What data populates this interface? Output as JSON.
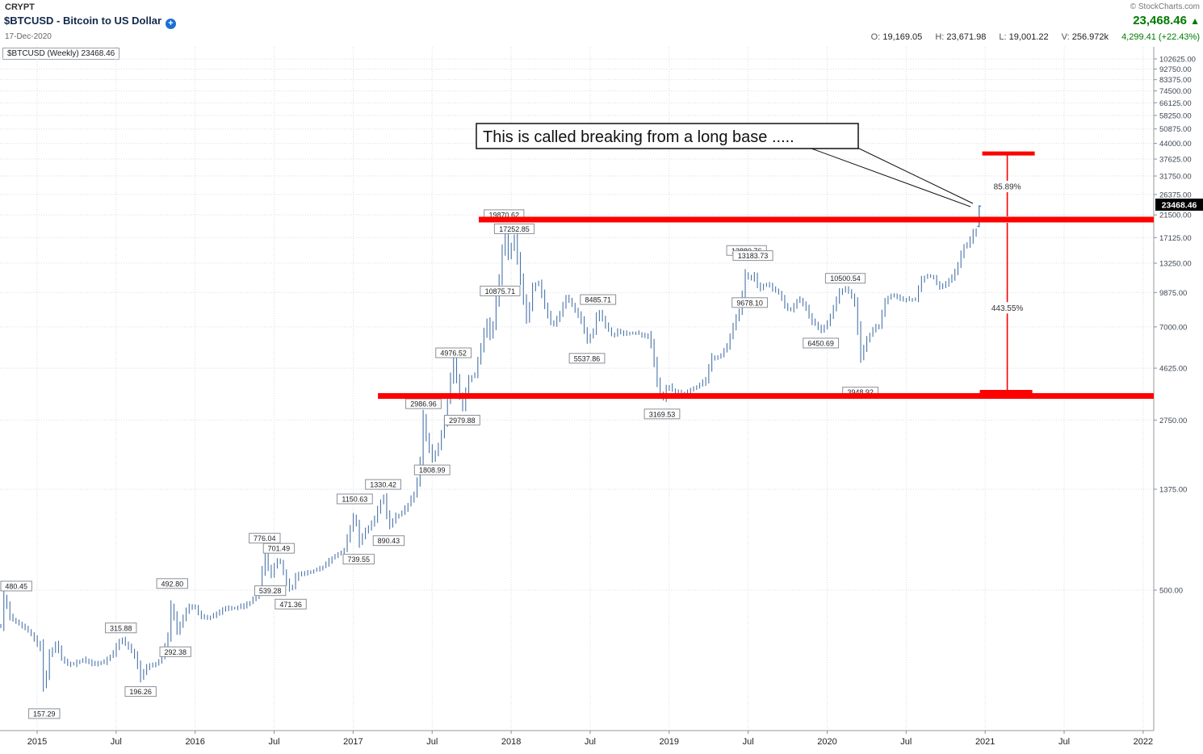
{
  "header": {
    "sector": "CRYPT",
    "title": "$BTCUSD - Bitcoin to US Dollar",
    "date": "17-Dec-2020",
    "copyright": "© StockCharts.com",
    "last_price": "23,468.46",
    "up_arrow": "▲",
    "ohlc": {
      "o_label": "O:",
      "o": "19,169.05",
      "h_label": "H:",
      "h": "23,671.98",
      "l_label": "L:",
      "l": "19,001.22",
      "v_label": "V:",
      "v": "256.972k",
      "change": "4,299.41 (+22.43%)"
    },
    "legend": "$BTCUSD (Weekly) 23468.46"
  },
  "colors": {
    "bars": "#4a74a8",
    "annotation_red": "#fe0000",
    "up_green": "#007a00",
    "price_tag_bg": "#000000",
    "grid": "#d9dde3"
  },
  "chart_data": {
    "type": "ohlc-bars",
    "symbol": "$BTCUSD",
    "timeframe": "Weekly",
    "title": "$BTCUSD - Bitcoin to US Dollar",
    "y_scale": "log",
    "ylim": [
      122,
      114000
    ],
    "grid": true,
    "x_ticks": [
      {
        "t": 2015.0,
        "label": "2015"
      },
      {
        "t": 2015.5,
        "label": "Jul"
      },
      {
        "t": 2016.0,
        "label": "2016"
      },
      {
        "t": 2016.5,
        "label": "Jul"
      },
      {
        "t": 2017.0,
        "label": "2017"
      },
      {
        "t": 2017.5,
        "label": "Jul"
      },
      {
        "t": 2018.0,
        "label": "2018"
      },
      {
        "t": 2018.5,
        "label": "Jul"
      },
      {
        "t": 2019.0,
        "label": "2019"
      },
      {
        "t": 2019.5,
        "label": "Jul"
      },
      {
        "t": 2020.0,
        "label": "2020"
      },
      {
        "t": 2020.5,
        "label": "Jul"
      },
      {
        "t": 2021.0,
        "label": "2021"
      },
      {
        "t": 2021.5,
        "label": "Jul"
      },
      {
        "t": 2022.0,
        "label": "2022"
      }
    ],
    "y_ticks": [
      500,
      1375,
      2750,
      4625,
      7000,
      9875,
      13250,
      17125,
      21500,
      26375,
      31750,
      37625,
      44000,
      50875,
      58250,
      66125,
      74500,
      83375,
      92750,
      102625
    ],
    "keypoints": [
      [
        2014.77,
        350
      ],
      [
        2014.79,
        465
      ],
      [
        2014.83,
        377
      ],
      [
        2014.9,
        352
      ],
      [
        2014.96,
        322
      ],
      [
        2015.02,
        276
      ],
      [
        2015.045,
        172
      ],
      [
        2015.07,
        256
      ],
      [
        2015.12,
        292
      ],
      [
        2015.16,
        246
      ],
      [
        2015.22,
        236
      ],
      [
        2015.29,
        248
      ],
      [
        2015.35,
        237
      ],
      [
        2015.42,
        241
      ],
      [
        2015.48,
        263
      ],
      [
        2015.53,
        309
      ],
      [
        2015.58,
        281
      ],
      [
        2015.62,
        256
      ],
      [
        2015.655,
        206
      ],
      [
        2015.7,
        233
      ],
      [
        2015.76,
        238
      ],
      [
        2015.8,
        266
      ],
      [
        2015.83,
        318
      ],
      [
        2015.855,
        478
      ],
      [
        2015.875,
        318
      ],
      [
        2015.91,
        356
      ],
      [
        2015.95,
        413
      ],
      [
        2015.99,
        431
      ],
      [
        2016.03,
        386
      ],
      [
        2016.08,
        374
      ],
      [
        2016.14,
        396
      ],
      [
        2016.2,
        417
      ],
      [
        2016.26,
        419
      ],
      [
        2016.31,
        426
      ],
      [
        2016.36,
        448
      ],
      [
        2016.41,
        497
      ],
      [
        2016.44,
        742
      ],
      [
        2016.475,
        565
      ],
      [
        2016.51,
        655
      ],
      [
        2016.53,
        688
      ],
      [
        2016.58,
        532
      ],
      [
        2016.605,
        492
      ],
      [
        2016.64,
        577
      ],
      [
        2016.7,
        591
      ],
      [
        2016.76,
        611
      ],
      [
        2016.82,
        636
      ],
      [
        2016.88,
        702
      ],
      [
        2016.94,
        737
      ],
      [
        2016.99,
        958
      ],
      [
        2017.01,
        1095
      ],
      [
        2017.035,
        792
      ],
      [
        2017.08,
        908
      ],
      [
        2017.13,
        992
      ],
      [
        2017.19,
        1292
      ],
      [
        2017.225,
        938
      ],
      [
        2017.27,
        1042
      ],
      [
        2017.31,
        1083
      ],
      [
        2017.35,
        1183
      ],
      [
        2017.39,
        1322
      ],
      [
        2017.42,
        1650
      ],
      [
        2017.445,
        2850
      ],
      [
        2017.465,
        2250
      ],
      [
        2017.5,
        1855
      ],
      [
        2017.54,
        2105
      ],
      [
        2017.58,
        2750
      ],
      [
        2017.61,
        3900
      ],
      [
        2017.635,
        4850
      ],
      [
        2017.69,
        3055
      ],
      [
        2017.73,
        4105
      ],
      [
        2017.77,
        4355
      ],
      [
        2017.81,
        5705
      ],
      [
        2017.845,
        7405
      ],
      [
        2017.87,
        6205
      ],
      [
        2017.9,
        8105
      ],
      [
        2017.915,
        11305
      ],
      [
        2017.93,
        10955
      ],
      [
        2017.955,
        19300
      ],
      [
        2017.98,
        14200
      ],
      [
        2018.02,
        16800
      ],
      [
        2018.06,
        11000
      ],
      [
        2018.1,
        7300
      ],
      [
        2018.135,
        10200
      ],
      [
        2018.17,
        11000
      ],
      [
        2018.22,
        8300
      ],
      [
        2018.26,
        7000
      ],
      [
        2018.31,
        8000
      ],
      [
        2018.35,
        9500
      ],
      [
        2018.4,
        8400
      ],
      [
        2018.44,
        7500
      ],
      [
        2018.48,
        6100
      ],
      [
        2018.52,
        6700
      ],
      [
        2018.55,
        8200
      ],
      [
        2018.6,
        7000
      ],
      [
        2018.64,
        6400
      ],
      [
        2018.68,
        6700
      ],
      [
        2018.73,
        6500
      ],
      [
        2018.78,
        6600
      ],
      [
        2018.83,
        6450
      ],
      [
        2018.87,
        6350
      ],
      [
        2018.89,
        5600
      ],
      [
        2018.92,
        4100
      ],
      [
        2018.955,
        3300
      ],
      [
        2018.99,
        3900
      ],
      [
        2019.03,
        3650
      ],
      [
        2019.08,
        3550
      ],
      [
        2019.13,
        3700
      ],
      [
        2019.18,
        3850
      ],
      [
        2019.23,
        4050
      ],
      [
        2019.27,
        5100
      ],
      [
        2019.32,
        5200
      ],
      [
        2019.37,
        5800
      ],
      [
        2019.41,
        7200
      ],
      [
        2019.45,
        8300
      ],
      [
        2019.49,
        12800
      ],
      [
        2019.51,
        10400
      ],
      [
        2019.53,
        12200
      ],
      [
        2019.57,
        10100
      ],
      [
        2019.61,
        10800
      ],
      [
        2019.65,
        10300
      ],
      [
        2019.7,
        9700
      ],
      [
        2019.74,
        8300
      ],
      [
        2019.78,
        8350
      ],
      [
        2019.82,
        9300
      ],
      [
        2019.86,
        8600
      ],
      [
        2019.9,
        7400
      ],
      [
        2019.93,
        7200
      ],
      [
        2019.96,
        6700
      ],
      [
        2020.0,
        7250
      ],
      [
        2020.04,
        8350
      ],
      [
        2020.08,
        9900
      ],
      [
        2020.115,
        10200
      ],
      [
        2020.15,
        9650
      ],
      [
        2020.18,
        8500
      ],
      [
        2020.21,
        5100
      ],
      [
        2020.25,
        6150
      ],
      [
        2020.29,
        6800
      ],
      [
        2020.33,
        7100
      ],
      [
        2020.36,
        8800
      ],
      [
        2020.4,
        9600
      ],
      [
        2020.44,
        9450
      ],
      [
        2020.48,
        9150
      ],
      [
        2020.52,
        9200
      ],
      [
        2020.56,
        9150
      ],
      [
        2020.59,
        11000
      ],
      [
        2020.63,
        11700
      ],
      [
        2020.67,
        11500
      ],
      [
        2020.71,
        10400
      ],
      [
        2020.75,
        10750
      ],
      [
        2020.79,
        11400
      ],
      [
        2020.83,
        13050
      ],
      [
        2020.86,
        15500
      ],
      [
        2020.9,
        16100
      ],
      [
        2020.92,
        18400
      ],
      [
        2020.94,
        17150
      ],
      [
        2020.955,
        19200
      ]
    ],
    "last_bar": {
      "t": 2020.962,
      "open": 19169.05,
      "high": 23671.98,
      "low": 19001.22,
      "close": 23468.46
    },
    "price_labels": [
      {
        "t": 2014.795,
        "price": 480.45,
        "text": "480.45",
        "place": "above"
      },
      {
        "t": 2015.045,
        "price": 157.29,
        "text": "157.29",
        "place": "below"
      },
      {
        "t": 2015.53,
        "price": 315.88,
        "text": "315.88",
        "place": "above"
      },
      {
        "t": 2015.655,
        "price": 196.26,
        "text": "196.26",
        "place": "below"
      },
      {
        "t": 2015.855,
        "price": 492.8,
        "text": "492.80",
        "place": "above"
      },
      {
        "t": 2015.875,
        "price": 292.38,
        "text": "292.38",
        "place": "below"
      },
      {
        "t": 2016.44,
        "price": 776.04,
        "text": "776.04",
        "place": "above"
      },
      {
        "t": 2016.475,
        "price": 539.28,
        "text": "539.28",
        "place": "below"
      },
      {
        "t": 2016.53,
        "price": 701.49,
        "text": "701.49",
        "place": "above"
      },
      {
        "t": 2016.605,
        "price": 471.36,
        "text": "471.36",
        "place": "below"
      },
      {
        "t": 2017.01,
        "price": 1150.63,
        "text": "1150.63",
        "place": "above"
      },
      {
        "t": 2017.035,
        "price": 739.55,
        "text": "739.55",
        "place": "below"
      },
      {
        "t": 2017.19,
        "price": 1330.42,
        "text": "1330.42",
        "place": "above"
      },
      {
        "t": 2017.225,
        "price": 890.43,
        "text": "890.43",
        "place": "below"
      },
      {
        "t": 2017.445,
        "price": 2986.96,
        "text": "2986.96",
        "place": "above"
      },
      {
        "t": 2017.5,
        "price": 1808.99,
        "text": "1808.99",
        "place": "below"
      },
      {
        "t": 2017.635,
        "price": 4976.52,
        "text": "4976.52",
        "place": "above"
      },
      {
        "t": 2017.69,
        "price": 2979.88,
        "text": "2979.88",
        "place": "below"
      },
      {
        "t": 2017.93,
        "price": 10875.71,
        "text": "10875.71",
        "place": "below"
      },
      {
        "t": 2017.955,
        "price": 19870.62,
        "text": "19870.62",
        "place": "above"
      },
      {
        "t": 2018.02,
        "price": 17252.85,
        "text": "17252.85",
        "place": "above"
      },
      {
        "t": 2018.48,
        "price": 5537.86,
        "text": "5537.86",
        "place": "below"
      },
      {
        "t": 2018.55,
        "price": 8485.71,
        "text": "8485.71",
        "place": "above"
      },
      {
        "t": 2018.955,
        "price": 3169.53,
        "text": "3169.53",
        "place": "below"
      },
      {
        "t": 2019.49,
        "price": 13880.76,
        "text": "13880.76",
        "place": "above"
      },
      {
        "t": 2019.51,
        "price": 9678.1,
        "text": "9678.10",
        "place": "below"
      },
      {
        "t": 2019.53,
        "price": 13183.73,
        "text": "13183.73",
        "place": "above"
      },
      {
        "t": 2019.96,
        "price": 6450.69,
        "text": "6450.69",
        "place": "below"
      },
      {
        "t": 2020.115,
        "price": 10500.54,
        "text": "10500.54",
        "place": "above"
      },
      {
        "t": 2020.21,
        "price": 3948.92,
        "text": "3948.92",
        "place": "below"
      }
    ],
    "annotations": {
      "breakout_line_price": 20500,
      "breakout_line_start_t": 2017.795,
      "base_line_price": 3500,
      "base_line_start_t": 2017.157,
      "target_line_price": 39800,
      "measure_t": 2021.14,
      "upper_pct": "85.89%",
      "lower_pct": "443.55%",
      "callout_text": "This is called breaking from a long base .....",
      "price_tag": "23468.46"
    }
  }
}
